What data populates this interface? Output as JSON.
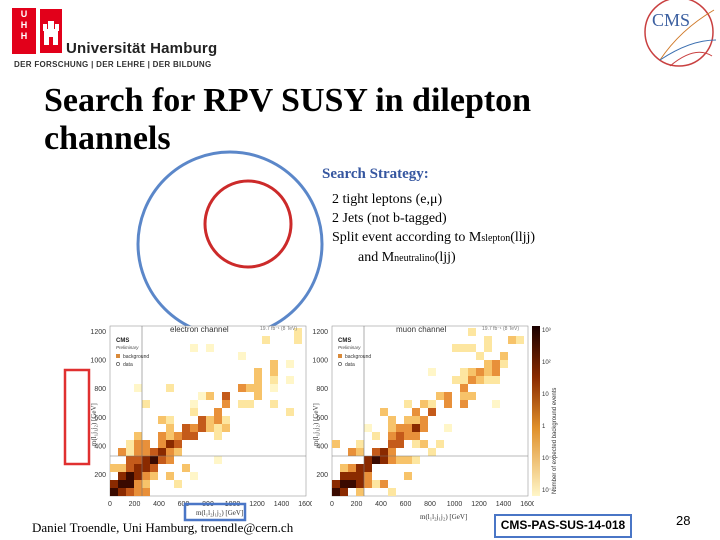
{
  "header": {
    "logo_letters": [
      "U",
      "H",
      "H"
    ],
    "university_name": "Universität Hamburg",
    "motto": "DER FORSCHUNG | DER LEHRE | DER BILDUNG",
    "cms_logo_text": "CMS"
  },
  "slide": {
    "title_line1": "Search for RPV SUSY in dilepton",
    "title_line2": "channels",
    "strategy_heading": "Search Strategy:",
    "strategy_items": [
      "2 tight leptons (e,μ)",
      "2 Jets (not b-tagged)"
    ],
    "split_line": {
      "prefix": "Split event according to M",
      "sub": "slepton",
      "suffix": "(lljj)"
    },
    "and_line": {
      "prefix": "and M",
      "sub": "neutralino",
      "suffix": "(ljj)"
    }
  },
  "plots": [
    {
      "title": "electron channel",
      "collaboration": "CMS",
      "status": "Preliminary",
      "lumi": "19.7 fb⁻¹ (8 TeV)",
      "legend": [
        "background",
        "data"
      ],
      "y_ticks": [
        "1200",
        "1000",
        "800",
        "600",
        "400",
        "200"
      ],
      "x_ticks": [
        "0",
        "200",
        "400",
        "600",
        "800",
        "1000",
        "1200",
        "1400",
        "1600"
      ]
    },
    {
      "title": "muon channel",
      "collaboration": "CMS",
      "status": "Preliminary",
      "lumi": "19.7 fb⁻¹ (8 TeV)",
      "legend": [
        "background",
        "data"
      ],
      "y_ticks": [
        "1200",
        "1000",
        "800",
        "600",
        "400",
        "200"
      ],
      "x_ticks": [
        "0",
        "200",
        "400",
        "600",
        "800",
        "1000",
        "1200",
        "1400",
        "1600"
      ],
      "colorbar_label": "Number of expected background events",
      "colorbar_ticks": [
        "10³",
        "10²",
        "10",
        "1",
        "10⁻¹",
        "10⁻²"
      ]
    }
  ],
  "colors": {
    "title": "#000000",
    "heading": "#3556a0",
    "uhh_red": "#e2001a",
    "circle_outer": "#5b87c9",
    "circle_inner": "#cc2a2a",
    "highlight_red": "#e03030",
    "highlight_blue": "#4a76c6"
  },
  "footer": {
    "author": "Daniel Troendle, Uni Hamburg, troendle@cern.ch",
    "reference": "CMS-PAS-SUS-14-018",
    "page_number": "28"
  }
}
